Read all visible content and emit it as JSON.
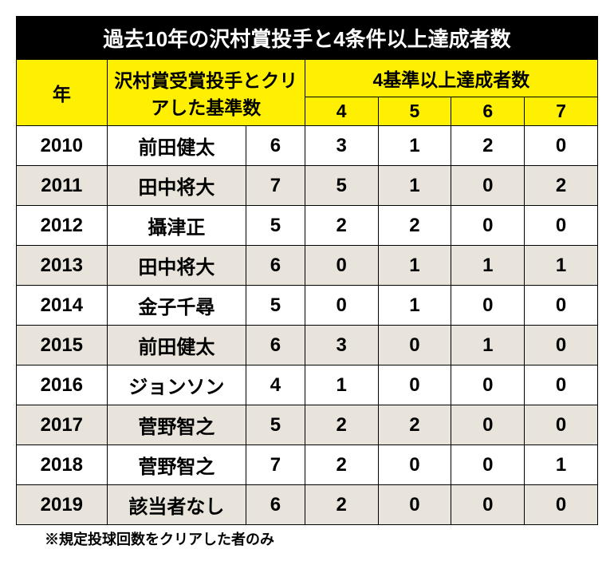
{
  "title": "過去10年の沢村賞投手と4条件以上達成者数",
  "headers": {
    "year": "年",
    "pitcher": "沢村賞受賞投手とクリアした基準数",
    "achievers": "4基準以上達成者数",
    "sub": [
      "4",
      "5",
      "6",
      "7"
    ]
  },
  "rows": [
    {
      "year": "2010",
      "name": "前田健太",
      "cnt": "6",
      "c4": "3",
      "c5": "1",
      "c6": "2",
      "c7": "0"
    },
    {
      "year": "2011",
      "name": "田中将大",
      "cnt": "7",
      "c4": "5",
      "c5": "1",
      "c6": "0",
      "c7": "2"
    },
    {
      "year": "2012",
      "name": "攝津正",
      "cnt": "5",
      "c4": "2",
      "c5": "2",
      "c6": "0",
      "c7": "0"
    },
    {
      "year": "2013",
      "name": "田中将大",
      "cnt": "6",
      "c4": "0",
      "c5": "1",
      "c6": "1",
      "c7": "1"
    },
    {
      "year": "2014",
      "name": "金子千尋",
      "cnt": "5",
      "c4": "0",
      "c5": "1",
      "c6": "0",
      "c7": "0"
    },
    {
      "year": "2015",
      "name": "前田健太",
      "cnt": "6",
      "c4": "3",
      "c5": "0",
      "c6": "1",
      "c7": "0"
    },
    {
      "year": "2016",
      "name": "ジョンソン",
      "cnt": "4",
      "c4": "1",
      "c5": "0",
      "c6": "0",
      "c7": "0"
    },
    {
      "year": "2017",
      "name": "菅野智之",
      "cnt": "5",
      "c4": "2",
      "c5": "2",
      "c6": "0",
      "c7": "0"
    },
    {
      "year": "2018",
      "name": "菅野智之",
      "cnt": "7",
      "c4": "2",
      "c5": "0",
      "c6": "0",
      "c7": "1"
    },
    {
      "year": "2019",
      "name": "該当者なし",
      "cnt": "6",
      "c4": "2",
      "c5": "0",
      "c6": "0",
      "c7": "0"
    }
  ],
  "footnote": "※規定投球回数をクリアした者のみ"
}
